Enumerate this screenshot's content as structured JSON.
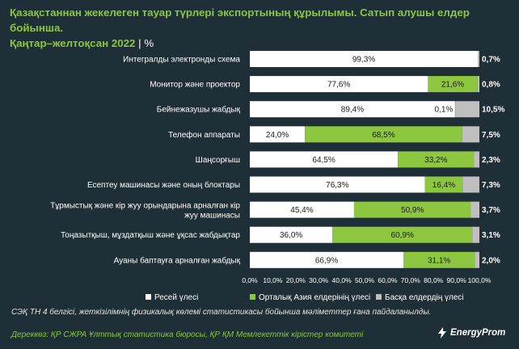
{
  "title": {
    "line1": "Қазақстаннан жекелеген тауар түрлері экспортының құрылымы. Сатып алушы елдер бойынша.",
    "line2": "Қаңтар–желтоқсан 2022",
    "separator": "|",
    "unit": "%"
  },
  "footnote": "СЭҚ ТН 4 белгісі, жеткізілімнің физикалық көлемі статистикасы бойынша мәліметтер ғана пайдаланылды.",
  "source": "Дереккөз: ҚР СЖРА Ұлттық статистика бюросы, ҚР ҚМ Мемлекеттік кірістер комитеті",
  "logo": {
    "text": "EnergyProm"
  },
  "colors": {
    "russia": "#ffffff",
    "central_asia": "#8dc63f",
    "other": "#bfbfbf",
    "background": "#1f2f38"
  },
  "chart_data": {
    "type": "bar",
    "orientation": "horizontal",
    "stacked": true,
    "categories": [
      "Интегралды электронды схема",
      "Монитор және проектор",
      "Бейнежазушы жабдық",
      "Телефон аппараты",
      "Шаңсорғыш",
      "Есептеу машинасы және оның блоктары",
      "Тұрмыстық және кір жуу орындарына арналған кір жуу машинасы",
      "Тоңазытқыш, мұздатқыш және ұқсас жабдықтар",
      "Ауаны баптауға арналған жабдық"
    ],
    "series": [
      {
        "name": "Ресей үлесі",
        "values": [
          99.3,
          77.6,
          89.4,
          24.0,
          64.5,
          76.3,
          45.4,
          36.0,
          66.9
        ],
        "labels": [
          "99,3%",
          "77,6%",
          "89,4%",
          "24,0%",
          "64,5%",
          "76,3%",
          "45,4%",
          "36,0%",
          "66,9%"
        ]
      },
      {
        "name": "Орталық Азия елдерінің үлесі",
        "values": [
          0.0,
          21.6,
          0.1,
          68.5,
          33.2,
          16.4,
          50.9,
          60.9,
          31.1
        ],
        "labels": [
          "",
          "21,6%",
          "0,1%",
          "68,5%",
          "33,2%",
          "16,4%",
          "50,9%",
          "60,9%",
          "31,1%"
        ]
      },
      {
        "name": "Басқа елдердің үлесі",
        "values": [
          0.7,
          0.8,
          10.5,
          7.5,
          2.3,
          7.3,
          3.7,
          3.1,
          2.0
        ],
        "labels": [
          "0,7%",
          "0,8%",
          "10,5%",
          "7,5%",
          "2,3%",
          "7,3%",
          "3,7%",
          "3,1%",
          "2,0%"
        ]
      }
    ],
    "xlim": [
      0,
      100
    ],
    "xticks": [
      "0,0%",
      "10,0%",
      "20,0%",
      "30,0%",
      "40,0%",
      "50,0%",
      "60,0%",
      "70,0%",
      "80,0%",
      "90,0%",
      "100,0%"
    ],
    "legend_position": "bottom",
    "grid": false
  }
}
